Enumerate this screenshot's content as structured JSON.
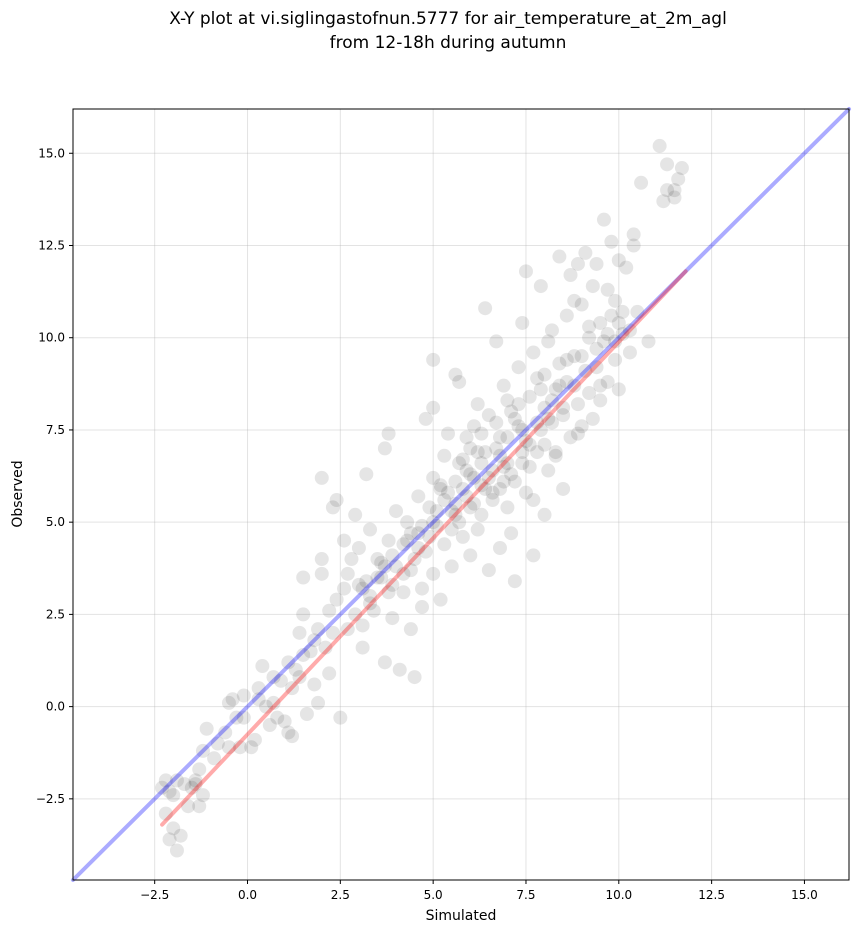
{
  "chart_data": {
    "type": "scatter",
    "title_line1": "X-Y plot at vi.siglingastofnun.5777 for air_temperature_at_2m_agl",
    "title_line2": "from 12-18h during autumn",
    "xlabel": "Simulated",
    "ylabel": "Observed",
    "xlim": [
      -4.7,
      16.2
    ],
    "ylim": [
      -4.7,
      16.2
    ],
    "xticks": [
      -2.5,
      0.0,
      2.5,
      5.0,
      7.5,
      10.0,
      12.5,
      15.0
    ],
    "yticks": [
      -2.5,
      0.0,
      2.5,
      5.0,
      7.5,
      10.0,
      12.5,
      15.0
    ],
    "xtick_labels": [
      "−2.5",
      "0.0",
      "2.5",
      "5.0",
      "7.5",
      "10.0",
      "12.5",
      "15.0"
    ],
    "ytick_labels": [
      "−2.5",
      "0.0",
      "2.5",
      "5.0",
      "7.5",
      "10.0",
      "12.5",
      "15.0"
    ],
    "grid": true,
    "point_color": "#000000",
    "point_opacity": 0.1,
    "lines": [
      {
        "role": "identity",
        "color": "#0000ff",
        "opacity": 0.33,
        "x": [
          -4.7,
          16.2
        ],
        "y": [
          -4.7,
          16.2
        ]
      },
      {
        "role": "fit",
        "color": "#ff0000",
        "opacity": 0.33,
        "x": [
          -2.3,
          11.8
        ],
        "y": [
          -3.2,
          11.8
        ]
      }
    ],
    "points": [
      [
        -2.3,
        -2.2
      ],
      [
        -2.2,
        -2.9
      ],
      [
        -2.1,
        -3.6
      ],
      [
        -2.0,
        -2.4
      ],
      [
        -1.9,
        -3.9
      ],
      [
        -1.9,
        -2.0
      ],
      [
        -1.8,
        -3.5
      ],
      [
        -1.7,
        -2.1
      ],
      [
        -2.2,
        -2.0
      ],
      [
        -2.0,
        -3.3
      ],
      [
        -1.6,
        -2.7
      ],
      [
        -1.5,
        -2.2
      ],
      [
        -1.4,
        -2.0
      ],
      [
        -1.3,
        -1.7
      ],
      [
        -1.2,
        -2.4
      ],
      [
        -1.2,
        -1.2
      ],
      [
        -1.1,
        -0.6
      ],
      [
        -1.3,
        -2.7
      ],
      [
        -1.4,
        -2.1
      ],
      [
        -2.1,
        -2.3
      ],
      [
        -0.8,
        -1.0
      ],
      [
        -0.5,
        -1.1
      ],
      [
        -0.5,
        0.1
      ],
      [
        -0.4,
        0.2
      ],
      [
        -0.3,
        -0.3
      ],
      [
        -0.2,
        -1.1
      ],
      [
        -0.1,
        0.3
      ],
      [
        0.1,
        -1.1
      ],
      [
        0.2,
        -0.9
      ],
      [
        0.3,
        0.2
      ],
      [
        0.4,
        1.1
      ],
      [
        0.5,
        0.0
      ],
      [
        0.6,
        -0.5
      ],
      [
        0.7,
        0.1
      ],
      [
        0.8,
        -0.3
      ],
      [
        0.9,
        0.7
      ],
      [
        1.0,
        -0.4
      ],
      [
        1.1,
        -0.7
      ],
      [
        1.2,
        -0.8
      ],
      [
        1.2,
        0.5
      ],
      [
        1.3,
        1.0
      ],
      [
        1.4,
        0.8
      ],
      [
        1.5,
        1.4
      ],
      [
        1.5,
        2.5
      ],
      [
        1.5,
        3.5
      ],
      [
        1.6,
        -0.2
      ],
      [
        1.7,
        1.5
      ],
      [
        1.8,
        0.6
      ],
      [
        1.9,
        0.1
      ],
      [
        1.9,
        2.1
      ],
      [
        2.0,
        3.6
      ],
      [
        2.0,
        4.0
      ],
      [
        2.0,
        6.2
      ],
      [
        2.1,
        1.6
      ],
      [
        2.2,
        0.9
      ],
      [
        2.3,
        2.0
      ],
      [
        2.3,
        5.4
      ],
      [
        2.4,
        5.6
      ],
      [
        2.5,
        -0.3
      ],
      [
        2.6,
        4.5
      ],
      [
        2.6,
        3.2
      ],
      [
        2.7,
        2.1
      ],
      [
        2.8,
        4.0
      ],
      [
        2.9,
        5.2
      ],
      [
        3.0,
        3.3
      ],
      [
        3.0,
        4.3
      ],
      [
        3.1,
        2.2
      ],
      [
        3.1,
        1.6
      ],
      [
        3.2,
        6.3
      ],
      [
        3.3,
        4.8
      ],
      [
        3.3,
        3.0
      ],
      [
        3.4,
        2.6
      ],
      [
        3.5,
        4.0
      ],
      [
        3.6,
        3.5
      ],
      [
        3.7,
        1.2
      ],
      [
        3.7,
        7.0
      ],
      [
        3.8,
        7.4
      ],
      [
        3.8,
        4.5
      ],
      [
        3.9,
        3.3
      ],
      [
        3.9,
        2.4
      ],
      [
        4.0,
        5.3
      ],
      [
        4.0,
        3.8
      ],
      [
        4.1,
        1.0
      ],
      [
        4.2,
        3.1
      ],
      [
        4.2,
        4.4
      ],
      [
        4.3,
        5.0
      ],
      [
        4.4,
        2.1
      ],
      [
        4.4,
        3.7
      ],
      [
        4.5,
        0.8
      ],
      [
        4.6,
        4.7
      ],
      [
        4.6,
        5.7
      ],
      [
        4.7,
        3.2
      ],
      [
        4.7,
        2.7
      ],
      [
        4.8,
        4.2
      ],
      [
        4.8,
        7.8
      ],
      [
        4.9,
        5.4
      ],
      [
        5.0,
        3.6
      ],
      [
        5.0,
        6.2
      ],
      [
        5.0,
        9.4
      ],
      [
        5.0,
        8.1
      ],
      [
        5.1,
        4.9
      ],
      [
        5.2,
        2.9
      ],
      [
        5.2,
        5.9
      ],
      [
        5.3,
        4.4
      ],
      [
        5.3,
        6.8
      ],
      [
        5.4,
        7.4
      ],
      [
        5.5,
        5.3
      ],
      [
        5.5,
        3.8
      ],
      [
        5.6,
        9.0
      ],
      [
        5.6,
        6.1
      ],
      [
        5.7,
        8.8
      ],
      [
        5.7,
        5.0
      ],
      [
        5.8,
        4.6
      ],
      [
        5.8,
        6.7
      ],
      [
        5.9,
        5.7
      ],
      [
        5.9,
        7.3
      ],
      [
        6.0,
        4.1
      ],
      [
        6.0,
        6.3
      ],
      [
        6.1,
        5.5
      ],
      [
        6.1,
        7.6
      ],
      [
        6.2,
        4.8
      ],
      [
        6.2,
        8.2
      ],
      [
        6.3,
        6.0
      ],
      [
        6.3,
        5.2
      ],
      [
        6.4,
        10.8
      ],
      [
        6.4,
        6.9
      ],
      [
        6.5,
        3.7
      ],
      [
        6.5,
        7.9
      ],
      [
        6.6,
        5.6
      ],
      [
        6.6,
        6.4
      ],
      [
        6.7,
        9.9
      ],
      [
        6.7,
        7.0
      ],
      [
        6.8,
        4.3
      ],
      [
        6.8,
        5.9
      ],
      [
        6.9,
        8.7
      ],
      [
        6.9,
        6.5
      ],
      [
        7.0,
        7.3
      ],
      [
        7.0,
        5.4
      ],
      [
        7.1,
        4.7
      ],
      [
        7.1,
        8.0
      ],
      [
        7.2,
        6.1
      ],
      [
        7.2,
        3.4
      ],
      [
        7.3,
        7.6
      ],
      [
        7.3,
        9.2
      ],
      [
        7.4,
        10.4
      ],
      [
        7.4,
        6.6
      ],
      [
        7.5,
        11.8
      ],
      [
        7.5,
        5.8
      ],
      [
        7.6,
        8.4
      ],
      [
        7.6,
        7.1
      ],
      [
        7.7,
        4.1
      ],
      [
        7.7,
        9.6
      ],
      [
        7.8,
        6.9
      ],
      [
        7.8,
        8.9
      ],
      [
        7.9,
        11.4
      ],
      [
        7.9,
        7.5
      ],
      [
        8.0,
        5.2
      ],
      [
        8.0,
        8.1
      ],
      [
        8.1,
        9.9
      ],
      [
        8.1,
        6.4
      ],
      [
        8.2,
        7.7
      ],
      [
        8.2,
        10.2
      ],
      [
        8.3,
        8.6
      ],
      [
        8.3,
        6.8
      ],
      [
        8.4,
        12.2
      ],
      [
        8.4,
        9.3
      ],
      [
        8.5,
        7.9
      ],
      [
        8.5,
        5.9
      ],
      [
        8.6,
        10.6
      ],
      [
        8.6,
        8.8
      ],
      [
        8.7,
        11.7
      ],
      [
        8.7,
        7.3
      ],
      [
        8.8,
        9.5
      ],
      [
        8.8,
        11.0
      ],
      [
        8.9,
        12.0
      ],
      [
        8.9,
        8.2
      ],
      [
        9.0,
        10.9
      ],
      [
        9.0,
        7.6
      ],
      [
        9.1,
        9.1
      ],
      [
        9.1,
        12.3
      ],
      [
        9.2,
        10.0
      ],
      [
        9.2,
        8.5
      ],
      [
        9.3,
        11.4
      ],
      [
        9.3,
        7.8
      ],
      [
        9.4,
        12.0
      ],
      [
        9.4,
        9.7
      ],
      [
        9.5,
        10.4
      ],
      [
        9.5,
        8.3
      ],
      [
        9.6,
        13.2
      ],
      [
        9.6,
        9.9
      ],
      [
        9.7,
        11.3
      ],
      [
        9.7,
        8.8
      ],
      [
        9.8,
        12.6
      ],
      [
        9.8,
        10.6
      ],
      [
        9.9,
        9.4
      ],
      [
        9.9,
        11.0
      ],
      [
        10.0,
        12.1
      ],
      [
        10.0,
        8.6
      ],
      [
        10.1,
        10.7
      ],
      [
        10.2,
        11.9
      ],
      [
        10.3,
        10.2
      ],
      [
        10.4,
        12.8
      ],
      [
        10.4,
        12.5
      ],
      [
        10.5,
        10.7
      ],
      [
        10.6,
        14.2
      ],
      [
        10.8,
        9.9
      ],
      [
        11.1,
        15.2
      ],
      [
        11.2,
        13.7
      ],
      [
        11.3,
        14.7
      ],
      [
        11.3,
        14.0
      ],
      [
        11.5,
        13.8
      ],
      [
        11.6,
        14.3
      ],
      [
        11.7,
        14.6
      ],
      [
        11.5,
        14.0
      ],
      [
        10.1,
        10.1
      ],
      [
        8.0,
        7.1
      ],
      [
        6.0,
        5.4
      ],
      [
        5.5,
        4.8
      ],
      [
        4.5,
        4.0
      ],
      [
        3.5,
        3.5
      ],
      [
        7.0,
        6.6
      ],
      [
        7.5,
        7.2
      ],
      [
        6.8,
        7.3
      ],
      [
        7.2,
        7.8
      ],
      [
        6.5,
        6.2
      ],
      [
        6.9,
        6.1
      ],
      [
        7.4,
        6.9
      ],
      [
        7.8,
        7.7
      ],
      [
        8.2,
        8.3
      ],
      [
        8.5,
        8.1
      ],
      [
        8.8,
        8.7
      ],
      [
        6.6,
        5.8
      ],
      [
        6.3,
        6.6
      ],
      [
        5.8,
        5.9
      ],
      [
        5.6,
        5.2
      ],
      [
        5.3,
        5.6
      ],
      [
        4.9,
        4.6
      ],
      [
        4.6,
        4.3
      ],
      [
        4.2,
        3.6
      ],
      [
        3.8,
        3.1
      ],
      [
        3.3,
        2.8
      ],
      [
        2.9,
        2.5
      ],
      [
        7.6,
        6.5
      ],
      [
        7.1,
        6.3
      ],
      [
        6.4,
        5.9
      ],
      [
        8.0,
        9.0
      ],
      [
        8.4,
        8.7
      ],
      [
        9.0,
        9.5
      ],
      [
        9.4,
        9.2
      ],
      [
        9.7,
        10.1
      ],
      [
        7.3,
        8.2
      ],
      [
        6.7,
        7.7
      ],
      [
        6.2,
        6.9
      ],
      [
        5.9,
        6.4
      ],
      [
        5.4,
        5.8
      ],
      [
        5.1,
        5.3
      ],
      [
        4.7,
        4.9
      ],
      [
        4.3,
        4.5
      ],
      [
        3.9,
        4.1
      ],
      [
        3.6,
        3.9
      ],
      [
        3.2,
        3.4
      ],
      [
        2.7,
        3.6
      ],
      [
        2.4,
        2.9
      ],
      [
        2.2,
        2.6
      ],
      [
        1.8,
        1.8
      ],
      [
        1.4,
        2.0
      ],
      [
        1.1,
        1.2
      ],
      [
        0.7,
        0.8
      ],
      [
        0.3,
        0.5
      ],
      [
        -0.1,
        -0.3
      ],
      [
        -0.6,
        -0.7
      ],
      [
        -0.9,
        -1.4
      ],
      [
        7.9,
        8.6
      ],
      [
        8.6,
        9.4
      ],
      [
        9.2,
        10.3
      ],
      [
        7.0,
        8.3
      ],
      [
        6.3,
        7.4
      ],
      [
        6.0,
        7.0
      ],
      [
        5.7,
        6.6
      ],
      [
        5.2,
        6.0
      ],
      [
        7.7,
        5.6
      ],
      [
        8.3,
        6.9
      ],
      [
        8.9,
        7.4
      ],
      [
        9.5,
        8.7
      ],
      [
        9.9,
        9.9
      ],
      [
        10.3,
        9.6
      ],
      [
        10.0,
        10.4
      ],
      [
        8.1,
        7.8
      ],
      [
        7.4,
        7.5
      ],
      [
        6.8,
        6.8
      ],
      [
        6.1,
        6.2
      ],
      [
        5.6,
        5.5
      ],
      [
        5.0,
        5.0
      ],
      [
        4.4,
        4.7
      ],
      [
        3.7,
        3.8
      ],
      [
        3.1,
        3.2
      ]
    ]
  }
}
